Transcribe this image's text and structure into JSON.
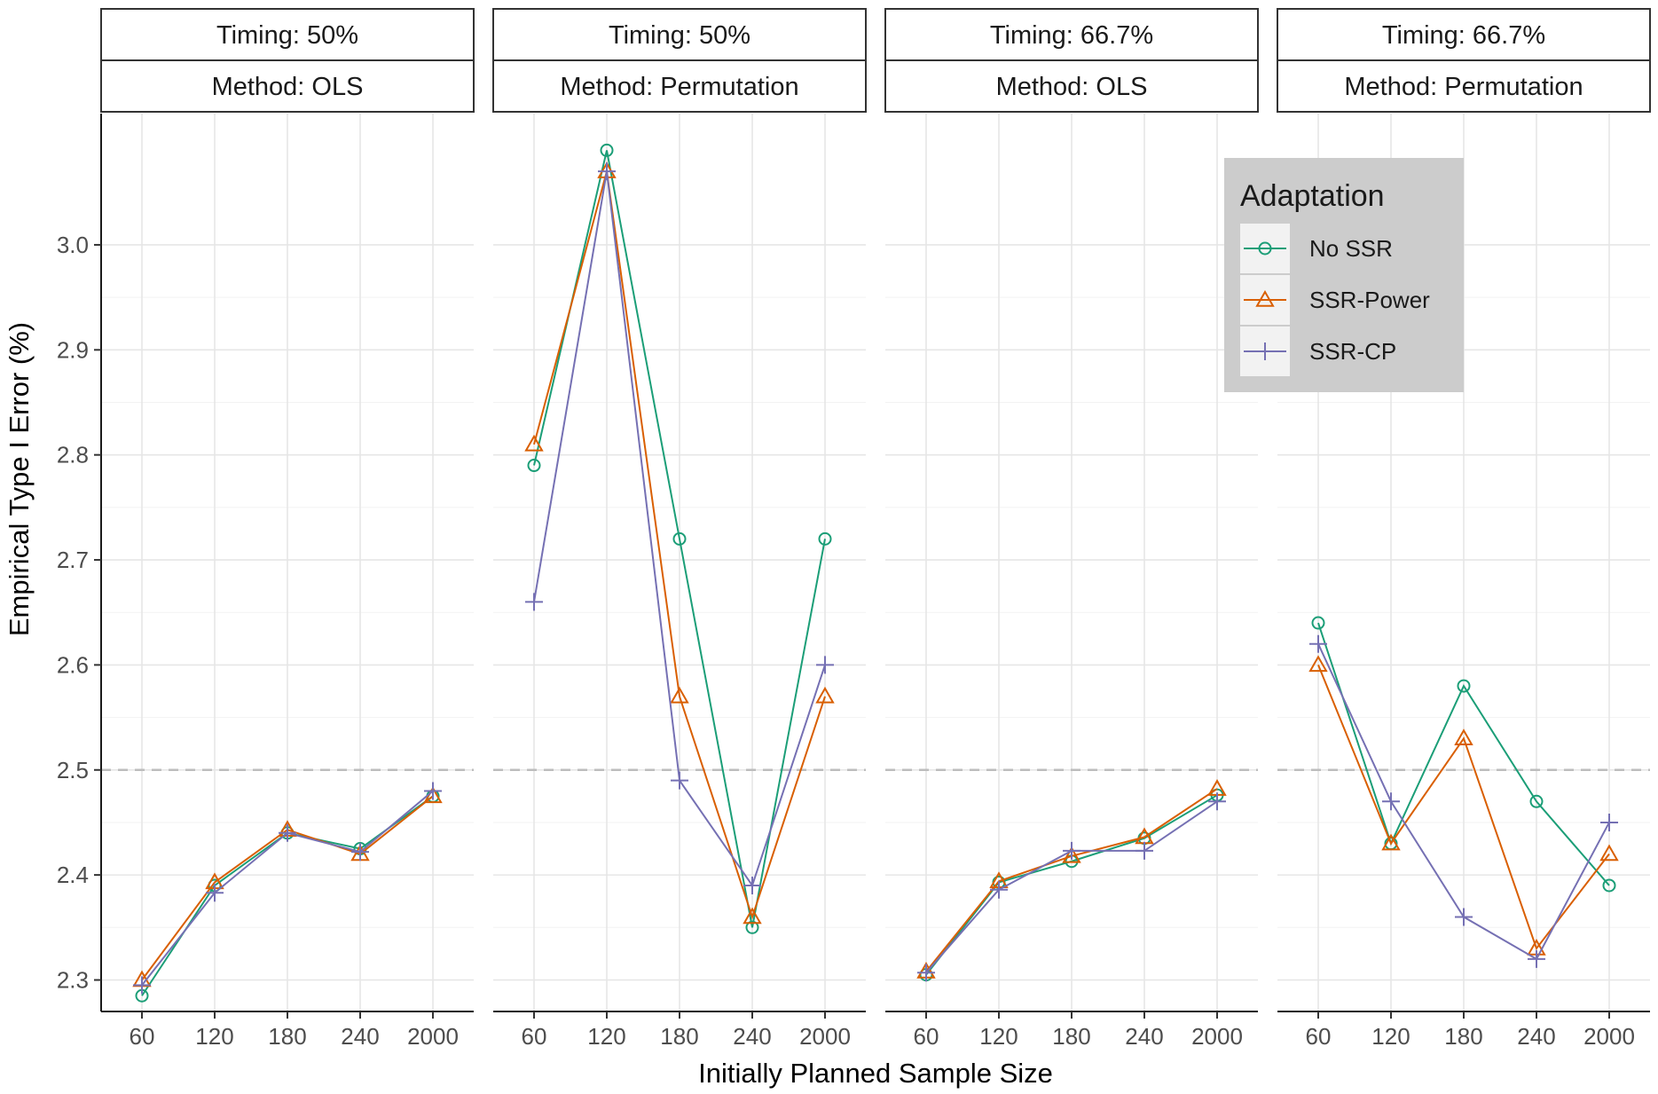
{
  "chart_data": {
    "type": "line",
    "xlabel": "Initially Planned Sample Size",
    "ylabel": "Empirical Type I Error (%)",
    "categories": [
      "60",
      "120",
      "180",
      "240",
      "2000"
    ],
    "ylim": [
      2.27,
      3.125
    ],
    "yticks": [
      2.3,
      2.4,
      2.5,
      2.6,
      2.7,
      2.8,
      2.9,
      3.0
    ],
    "ytick_labels": [
      "2.3",
      "2.4",
      "2.5",
      "2.6",
      "2.7",
      "2.8",
      "2.9",
      "3.0"
    ],
    "reference_line": 2.5,
    "grid": true,
    "legend": {
      "title": "Adaptation",
      "position": "top-right",
      "entries": [
        {
          "name": "No SSR",
          "color": "#1b9e77",
          "marker": "circle"
        },
        {
          "name": "SSR-Power",
          "color": "#d95f02",
          "marker": "triangle"
        },
        {
          "name": "SSR-CP",
          "color": "#7570b3",
          "marker": "plus"
        }
      ]
    },
    "panels": [
      {
        "timing": "Timing: 50%",
        "method": "Method: OLS",
        "series": [
          {
            "name": "No SSR",
            "values": [
              2.285,
              2.39,
              2.44,
              2.425,
              2.475
            ]
          },
          {
            "name": "SSR-Power",
            "values": [
              2.3,
              2.393,
              2.443,
              2.42,
              2.475
            ]
          },
          {
            "name": "SSR-CP",
            "values": [
              2.295,
              2.383,
              2.44,
              2.422,
              2.48
            ]
          }
        ]
      },
      {
        "timing": "Timing: 50%",
        "method": "Method: Permutation",
        "series": [
          {
            "name": "No SSR",
            "values": [
              2.79,
              3.09,
              2.72,
              2.35,
              2.72
            ]
          },
          {
            "name": "SSR-Power",
            "values": [
              2.81,
              3.07,
              2.57,
              2.36,
              2.57
            ]
          },
          {
            "name": "SSR-CP",
            "values": [
              2.66,
              3.07,
              2.49,
              2.39,
              2.6
            ]
          }
        ]
      },
      {
        "timing": "Timing: 66.7%",
        "method": "Method: OLS",
        "series": [
          {
            "name": "No SSR",
            "values": [
              2.305,
              2.393,
              2.413,
              2.435,
              2.476
            ]
          },
          {
            "name": "SSR-Power",
            "values": [
              2.308,
              2.394,
              2.418,
              2.436,
              2.482
            ]
          },
          {
            "name": "SSR-CP",
            "values": [
              2.307,
              2.386,
              2.423,
              2.423,
              2.47
            ]
          }
        ]
      },
      {
        "timing": "Timing: 66.7%",
        "method": "Method: Permutation",
        "series": [
          {
            "name": "No SSR",
            "values": [
              2.64,
              2.43,
              2.58,
              2.47,
              2.39
            ]
          },
          {
            "name": "SSR-Power",
            "values": [
              2.6,
              2.43,
              2.53,
              2.33,
              2.42
            ]
          },
          {
            "name": "SSR-CP",
            "values": [
              2.62,
              2.47,
              2.36,
              2.32,
              2.45
            ]
          }
        ]
      }
    ]
  }
}
